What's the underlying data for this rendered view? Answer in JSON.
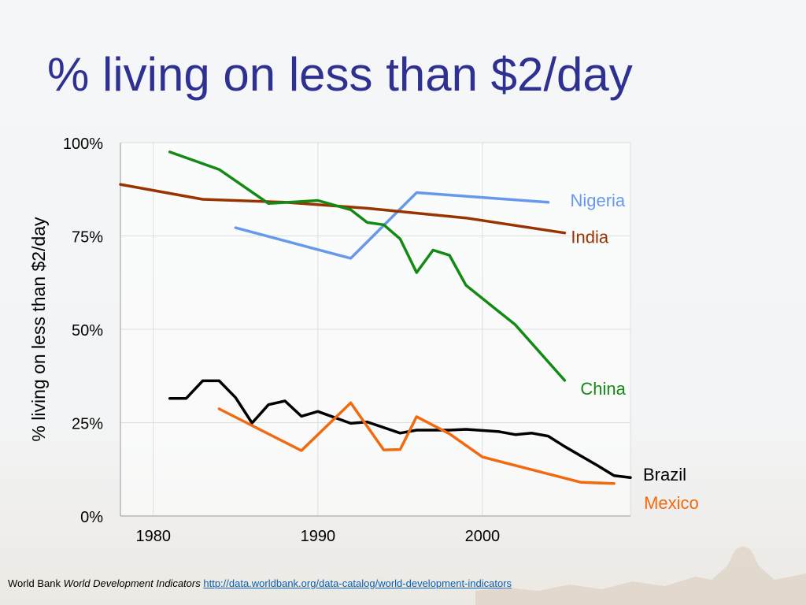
{
  "slide": {
    "title": "% living on less than $2/day"
  },
  "footer": {
    "source": "World Bank",
    "report": "World Development Indicators",
    "url": "http://data.worldbank.org/data-catalog/world-development-indicators"
  },
  "colors": {
    "title": "#2e3192",
    "Nigeria": "#6699ee",
    "India": "#993300",
    "China": "#138a13",
    "Brazil": "#000000",
    "Mexico": "#f26a10"
  },
  "chart_data": {
    "type": "line",
    "title": "",
    "xlabel": "",
    "ylabel": "% living on less than $2/day",
    "xlim": [
      1978,
      2009
    ],
    "ylim": [
      0,
      100
    ],
    "x_ticks": [
      1980,
      1990,
      2000
    ],
    "y_ticks": [
      0,
      25,
      50,
      75,
      100
    ],
    "y_tick_labels": [
      "0%",
      "25%",
      "50%",
      "75%",
      "100%"
    ],
    "grid": true,
    "legend": "inline labels at line ends",
    "series": [
      {
        "name": "Nigeria",
        "points": [
          [
            1985,
            77.2
          ],
          [
            1992,
            69.0
          ],
          [
            1996,
            86.6
          ],
          [
            2004,
            84.0
          ]
        ]
      },
      {
        "name": "India",
        "points": [
          [
            1978,
            88.8
          ],
          [
            1983,
            84.8
          ],
          [
            1988,
            84.0
          ],
          [
            1993,
            82.4
          ],
          [
            1999,
            79.8
          ],
          [
            2005,
            75.8
          ]
        ]
      },
      {
        "name": "China",
        "points": [
          [
            1981,
            97.5
          ],
          [
            1984,
            92.8
          ],
          [
            1987,
            83.7
          ],
          [
            1990,
            84.5
          ],
          [
            1992,
            82.0
          ],
          [
            1993,
            78.6
          ],
          [
            1994,
            78.0
          ],
          [
            1995,
            74.2
          ],
          [
            1996,
            65.2
          ],
          [
            1997,
            71.2
          ],
          [
            1998,
            69.8
          ],
          [
            1999,
            61.8
          ],
          [
            2002,
            51.2
          ],
          [
            2005,
            36.3
          ]
        ]
      },
      {
        "name": "Brazil",
        "points": [
          [
            1981,
            31.5
          ],
          [
            1982,
            31.5
          ],
          [
            1983,
            36.2
          ],
          [
            1984,
            36.2
          ],
          [
            1985,
            31.7
          ],
          [
            1986,
            24.9
          ],
          [
            1987,
            29.8
          ],
          [
            1988,
            30.8
          ],
          [
            1989,
            26.7
          ],
          [
            1990,
            28.0
          ],
          [
            1992,
            24.8
          ],
          [
            1993,
            25.2
          ],
          [
            1995,
            22.2
          ],
          [
            1996,
            23.0
          ],
          [
            1998,
            23.0
          ],
          [
            1999,
            23.2
          ],
          [
            2001,
            22.6
          ],
          [
            2002,
            21.8
          ],
          [
            2003,
            22.2
          ],
          [
            2004,
            21.4
          ],
          [
            2005,
            18.6
          ],
          [
            2007,
            13.5
          ],
          [
            2008,
            10.8
          ],
          [
            2009,
            10.3
          ]
        ]
      },
      {
        "name": "Mexico",
        "points": [
          [
            1984,
            28.7
          ],
          [
            1989,
            17.5
          ],
          [
            1992,
            30.3
          ],
          [
            1994,
            17.7
          ],
          [
            1995,
            17.8
          ],
          [
            1996,
            26.6
          ],
          [
            1998,
            22.0
          ],
          [
            2000,
            15.8
          ],
          [
            2006,
            9.0
          ],
          [
            2008,
            8.7
          ]
        ]
      }
    ]
  }
}
